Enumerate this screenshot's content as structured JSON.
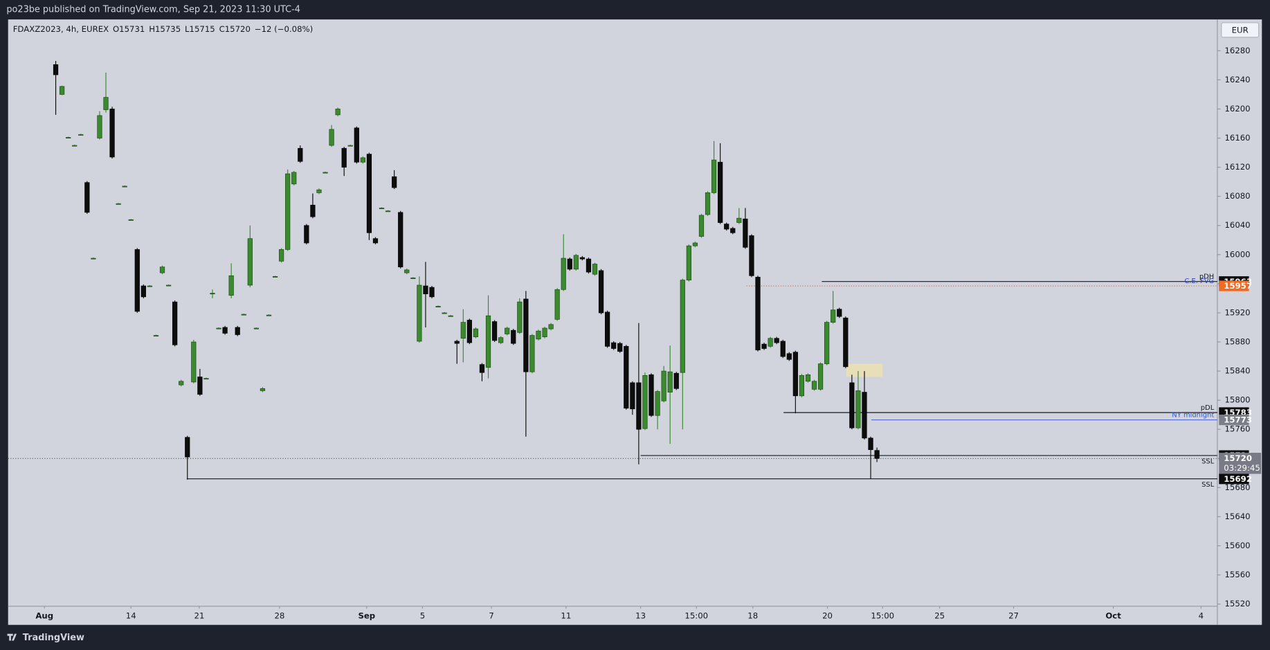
{
  "header": {
    "publisher": "po23be published on TradingView.com, Sep 21, 2023 11:30 UTC-4"
  },
  "footer": {
    "brand": "TradingView"
  },
  "chart_data": {
    "type": "candlestick",
    "legend": {
      "symbol": "FDAXZ2023, 4h, EUREX",
      "open_label": "O",
      "open": 15731,
      "high_label": "H",
      "high": 15735,
      "low_label": "L",
      "low": 15715,
      "close_label": "C",
      "close": 15720,
      "change": "−12 (−0.08%)"
    },
    "currency": "EUR",
    "colors": {
      "up": "#3b8a2f",
      "down": "#0d0d0d",
      "background": "#d1d4dc"
    },
    "open": [
      16261,
      16220,
      16161,
      16150,
      16165,
      16099,
      15995,
      16160,
      16199,
      16200,
      16070,
      16094,
      16048,
      16007,
      15957,
      15957,
      15889,
      15975,
      15958,
      15935,
      15821,
      15749,
      15825,
      15832,
      15830,
      15947,
      15899,
      15900,
      15944,
      15900,
      15918,
      15958,
      15899,
      15813,
      15917,
      15970,
      15991,
      16007,
      16097,
      16146,
      16040,
      16068,
      16085,
      16113,
      16150,
      16192,
      16146,
      16150,
      16174,
      16127,
      16138,
      16022,
      16064,
      16060,
      16107,
      16058,
      15975,
      15968,
      15881,
      15957,
      15955,
      15929,
      15920,
      15916,
      15881,
      15885,
      15910,
      15887,
      15849,
      15845,
      15908,
      15879,
      15891,
      15896,
      15893,
      15939,
      15839,
      15884,
      15887,
      15898,
      15911,
      15952,
      15994,
      15980,
      15996,
      15994,
      15973,
      15978,
      15921,
      15879,
      15878,
      15874,
      15824,
      15824,
      15761,
      15835,
      15779,
      15799,
      15811,
      15837,
      15838,
      15965,
      16012,
      16025,
      16055,
      16085,
      16127,
      16042,
      16036,
      16044,
      16049,
      16026,
      15969,
      15877,
      15874,
      15885,
      15881,
      15864,
      15866,
      15806,
      15826,
      15815,
      15815,
      15850,
      15907,
      15925,
      15913,
      15824,
      15762,
      15811,
      15748,
      15731
    ],
    "high": [
      16266,
      16232,
      16162,
      16151,
      16166,
      16101,
      15996,
      16197,
      16250,
      16203,
      16071,
      16095,
      16049,
      16009,
      15959,
      15958,
      15890,
      15985,
      15959,
      15937,
      15828,
      15751,
      15883,
      15843,
      15831,
      15952,
      15900,
      15902,
      15988,
      15902,
      15919,
      16040,
      15900,
      15818,
      15918,
      15971,
      16009,
      16117,
      16115,
      16150,
      16042,
      16084,
      16091,
      16114,
      16178,
      16202,
      16148,
      16151,
      16176,
      16135,
      16140,
      16024,
      16065,
      16061,
      16116,
      16060,
      15981,
      15969,
      15970,
      15990,
      15957,
      15930,
      15921,
      15917,
      15883,
      15925,
      15912,
      15900,
      15851,
      15944,
      15910,
      15888,
      15901,
      15898,
      15940,
      15950,
      15891,
      15897,
      15901,
      15906,
      15954,
      16028,
      15996,
      16001,
      15998,
      15996,
      15989,
      15980,
      15923,
      15881,
      15880,
      15876,
      15826,
      15906,
      15838,
      15837,
      15814,
      15847,
      15875,
      15839,
      15967,
      16014,
      16018,
      16056,
      16087,
      16156,
      16153,
      16044,
      16038,
      16064,
      16064,
      16028,
      15971,
      15879,
      15887,
      15887,
      15883,
      15866,
      15868,
      15836,
      15837,
      15828,
      15852,
      15909,
      15950,
      15927,
      15915,
      15835,
      15840,
      15840,
      15750,
      15735
    ],
    "low": [
      16192,
      16219,
      16160,
      16149,
      16164,
      16056,
      15994,
      16158,
      16195,
      16132,
      16069,
      16093,
      16047,
      15920,
      15940,
      15956,
      15888,
      15973,
      15957,
      15874,
      15819,
      15691,
      15823,
      15806,
      15829,
      15940,
      15898,
      15890,
      15940,
      15888,
      15917,
      15955,
      15898,
      15811,
      15916,
      15969,
      15989,
      16005,
      16095,
      16126,
      16014,
      16050,
      16083,
      16112,
      16148,
      16190,
      16108,
      16149,
      16125,
      16125,
      16020,
      16014,
      16063,
      16059,
      16090,
      15981,
      15973,
      15967,
      15879,
      15900,
      15940,
      15928,
      15919,
      15915,
      15850,
      15852,
      15877,
      15885,
      15826,
      15830,
      15880,
      15877,
      15889,
      15876,
      15891,
      15750,
      15837,
      15882,
      15885,
      15896,
      15909,
      15950,
      15978,
      15978,
      15992,
      15974,
      15971,
      15918,
      15872,
      15869,
      15865,
      15787,
      15780,
      15712,
      15759,
      15777,
      15760,
      15797,
      15740,
      15814,
      15760,
      15963,
      16010,
      16023,
      16053,
      16083,
      16042,
      16033,
      16028,
      16042,
      16008,
      15969,
      15867,
      15869,
      15872,
      15877,
      15858,
      15854,
      15782,
      15804,
      15824,
      15813,
      15813,
      15848,
      15905,
      15913,
      15844,
      15760,
      15760,
      15746,
      15692,
      15715
    ],
    "close": [
      16247,
      16231,
      16161,
      16150,
      16165,
      16058,
      15995,
      16191,
      16216,
      16134,
      16070,
      16094,
      16048,
      15922,
      15942,
      15957,
      15889,
      15983,
      15958,
      15876,
      15826,
      15722,
      15880,
      15808,
      15830,
      15947,
      15899,
      15892,
      15971,
      15890,
      15918,
      16022,
      15899,
      15816,
      15917,
      15970,
      16007,
      16111,
      16113,
      16128,
      16016,
      16052,
      16089,
      16113,
      16172,
      16200,
      16120,
      16150,
      16127,
      16133,
      16030,
      16016,
      16064,
      16060,
      16092,
      15983,
      15979,
      15968,
      15958,
      15946,
      15942,
      15929,
      15920,
      15916,
      15878,
      15907,
      15879,
      15898,
      15838,
      15916,
      15882,
      15886,
      15899,
      15878,
      15935,
      15839,
      15889,
      15895,
      15899,
      15904,
      15952,
      15995,
      15980,
      15999,
      15994,
      15976,
      15987,
      15920,
      15874,
      15871,
      15867,
      15789,
      15788,
      15760,
      15834,
      15779,
      15812,
      15840,
      15839,
      15816,
      15965,
      16012,
      16016,
      16054,
      16085,
      16130,
      16044,
      16035,
      16030,
      16050,
      16010,
      15971,
      15869,
      15871,
      15885,
      15879,
      15860,
      15856,
      15806,
      15834,
      15835,
      15826,
      15850,
      15907,
      15924,
      15915,
      15846,
      15762,
      15813,
      15748,
      15732,
      15720
    ],
    "xlim": [
      -7.6,
      185.3
    ],
    "xticks": [
      {
        "value": -1.8,
        "label": "Aug"
      },
      {
        "value": 12.0,
        "label": "14"
      },
      {
        "value": 22.9,
        "label": "21"
      },
      {
        "value": 35.7,
        "label": "28"
      },
      {
        "value": 49.6,
        "label": "Sep"
      },
      {
        "value": 58.5,
        "label": "5"
      },
      {
        "value": 69.5,
        "label": "7"
      },
      {
        "value": 81.4,
        "label": "11"
      },
      {
        "value": 93.3,
        "label": "13"
      },
      {
        "value": 102.2,
        "label": "15:00"
      },
      {
        "value": 111.2,
        "label": "18"
      },
      {
        "value": 123.1,
        "label": "20"
      },
      {
        "value": 131.9,
        "label": "15:00"
      },
      {
        "value": 141.0,
        "label": "25"
      },
      {
        "value": 152.8,
        "label": "27"
      },
      {
        "value": 168.7,
        "label": "Oct"
      },
      {
        "value": 182.7,
        "label": "4"
      }
    ],
    "ylim": [
      15517,
      16323
    ],
    "yticks": [
      15520,
      15560,
      15600,
      15640,
      15680,
      15720,
      15760,
      15800,
      15840,
      15880,
      15920,
      15960,
      16000,
      16040,
      16080,
      16120,
      16160,
      16200,
      16240,
      16280
    ],
    "levels": [
      {
        "label": "pDH",
        "value": 15963,
        "start": 122.2,
        "color": "#131722",
        "box": "#0d0d0d",
        "dash": "none"
      },
      {
        "label": "C.E. FVG",
        "value": 15957,
        "start": 110.2,
        "color": "#e0662a",
        "box": "#f06a23",
        "dash": "1 2",
        "text": "#2a45b8"
      },
      {
        "label": "pDL",
        "value": 15783,
        "start": 116.1,
        "color": "#131722",
        "box": "#0d0d0d",
        "dash": "none"
      },
      {
        "label": "NY midnight",
        "value": 15773,
        "start": 130.1,
        "color": "#5a6bd6",
        "box": "#7a7e88",
        "dash": "none",
        "text": "#2a5bd8"
      },
      {
        "label": "SSL",
        "value": 15724,
        "start": 93.3,
        "color": "#131722",
        "box": "#0d0d0d",
        "dash": "none"
      },
      {
        "label": "SSL",
        "value": 15692,
        "start": 20.9,
        "color": "#131722",
        "box": "#0d0d0d",
        "dash": "none"
      }
    ],
    "fvg_zone": {
      "x": [
        126.1,
        131.9
      ],
      "y": [
        15832,
        15850
      ],
      "color": "#ecdfb0"
    },
    "last_price": 15720,
    "countdown": "03:29:45"
  }
}
